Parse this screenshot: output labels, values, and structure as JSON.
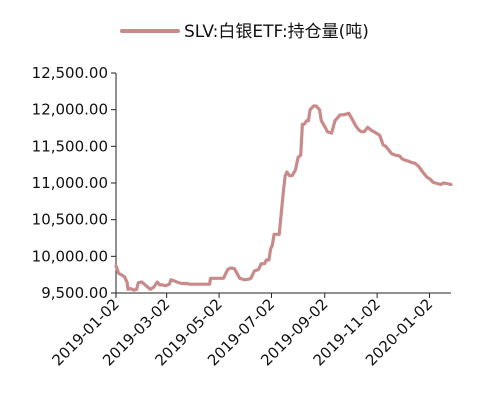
{
  "chart_data": {
    "type": "line",
    "title": "",
    "xlabel": "",
    "ylabel": "",
    "legend": {
      "position": "top",
      "entries": [
        "SLV:白银ETF:持仓量(吨)"
      ]
    },
    "grid": false,
    "x_type": "date",
    "xlim": [
      "2019-01-02",
      "2020-01-27"
    ],
    "ylim": [
      9500,
      12500
    ],
    "x_ticks": [
      "2019-01-02",
      "2019-03-02",
      "2019-05-02",
      "2019-07-02",
      "2019-09-02",
      "2019-11-02",
      "2020-01-02"
    ],
    "y_ticks": [
      "9,500.00",
      "10,000.00",
      "10,500.00",
      "11,000.00",
      "11,500.00",
      "12,000.00",
      "12,500.00"
    ],
    "series": [
      {
        "name": "SLV:白银ETF:持仓量(吨)",
        "color": "#c98a8a",
        "x": [
          "2019-01-02",
          "2019-01-05",
          "2019-01-08",
          "2019-01-12",
          "2019-01-15",
          "2019-01-16",
          "2019-01-19",
          "2019-01-23",
          "2019-01-26",
          "2019-01-28",
          "2019-02-01",
          "2019-02-04",
          "2019-02-08",
          "2019-02-11",
          "2019-02-15",
          "2019-02-19",
          "2019-02-22",
          "2019-02-25",
          "2019-03-01",
          "2019-03-05",
          "2019-03-07",
          "2019-03-12",
          "2019-03-16",
          "2019-03-20",
          "2019-03-25",
          "2019-03-29",
          "2019-04-03",
          "2019-04-07",
          "2019-04-10",
          "2019-04-15",
          "2019-04-21",
          "2019-04-22",
          "2019-04-28",
          "2019-05-02",
          "2019-05-03",
          "2019-05-07",
          "2019-05-12",
          "2019-05-15",
          "2019-05-17",
          "2019-05-20",
          "2019-05-26",
          "2019-06-01",
          "2019-06-06",
          "2019-06-08",
          "2019-06-12",
          "2019-06-17",
          "2019-06-20",
          "2019-06-24",
          "2019-06-26",
          "2019-06-29",
          "2019-07-01",
          "2019-07-03",
          "2019-07-05",
          "2019-07-09",
          "2019-07-11",
          "2019-07-16",
          "2019-07-18",
          "2019-07-20",
          "2019-07-23",
          "2019-07-26",
          "2019-07-30",
          "2019-08-02",
          "2019-08-05",
          "2019-08-07",
          "2019-08-09",
          "2019-08-12",
          "2019-08-14",
          "2019-08-16",
          "2019-08-20",
          "2019-08-23",
          "2019-08-27",
          "2019-08-29",
          "2019-09-03",
          "2019-09-05",
          "2019-09-10",
          "2019-09-14",
          "2019-09-20",
          "2019-09-24",
          "2019-09-30",
          "2019-10-04",
          "2019-10-08",
          "2019-10-12",
          "2019-10-15",
          "2019-10-18",
          "2019-10-22",
          "2019-10-26",
          "2019-11-01",
          "2019-11-05",
          "2019-11-09",
          "2019-11-12",
          "2019-11-19",
          "2019-11-23",
          "2019-11-28",
          "2019-12-01",
          "2019-12-05",
          "2019-12-08",
          "2019-12-12",
          "2019-12-16",
          "2019-12-20",
          "2019-12-25",
          "2019-12-30",
          "2020-01-03",
          "2020-01-06",
          "2020-01-09",
          "2020-01-15",
          "2020-01-18",
          "2020-01-23",
          "2020-01-27"
        ],
        "y": [
          9870,
          9770,
          9750,
          9720,
          9640,
          9550,
          9560,
          9540,
          9550,
          9640,
          9650,
          9620,
          9580,
          9550,
          9580,
          9650,
          9610,
          9610,
          9600,
          9620,
          9680,
          9660,
          9640,
          9630,
          9630,
          9620,
          9620,
          9620,
          9620,
          9620,
          9620,
          9700,
          9700,
          9700,
          9700,
          9700,
          9820,
          9840,
          9840,
          9830,
          9700,
          9680,
          9690,
          9700,
          9800,
          9820,
          9900,
          9900,
          9950,
          9950,
          10100,
          10150,
          10300,
          10300,
          10300,
          10900,
          11100,
          11150,
          11100,
          11100,
          11180,
          11350,
          11380,
          11800,
          11800,
          11850,
          11850,
          12000,
          12050,
          12050,
          12000,
          11850,
          11750,
          11700,
          11680,
          11850,
          11930,
          11930,
          11950,
          11870,
          11780,
          11720,
          11700,
          11700,
          11760,
          11720,
          11680,
          11650,
          11520,
          11500,
          11400,
          11380,
          11370,
          11330,
          11310,
          11300,
          11280,
          11270,
          11230,
          11150,
          11080,
          11050,
          11010,
          11000,
          10980,
          11000,
          10990,
          10980
        ]
      }
    ]
  }
}
